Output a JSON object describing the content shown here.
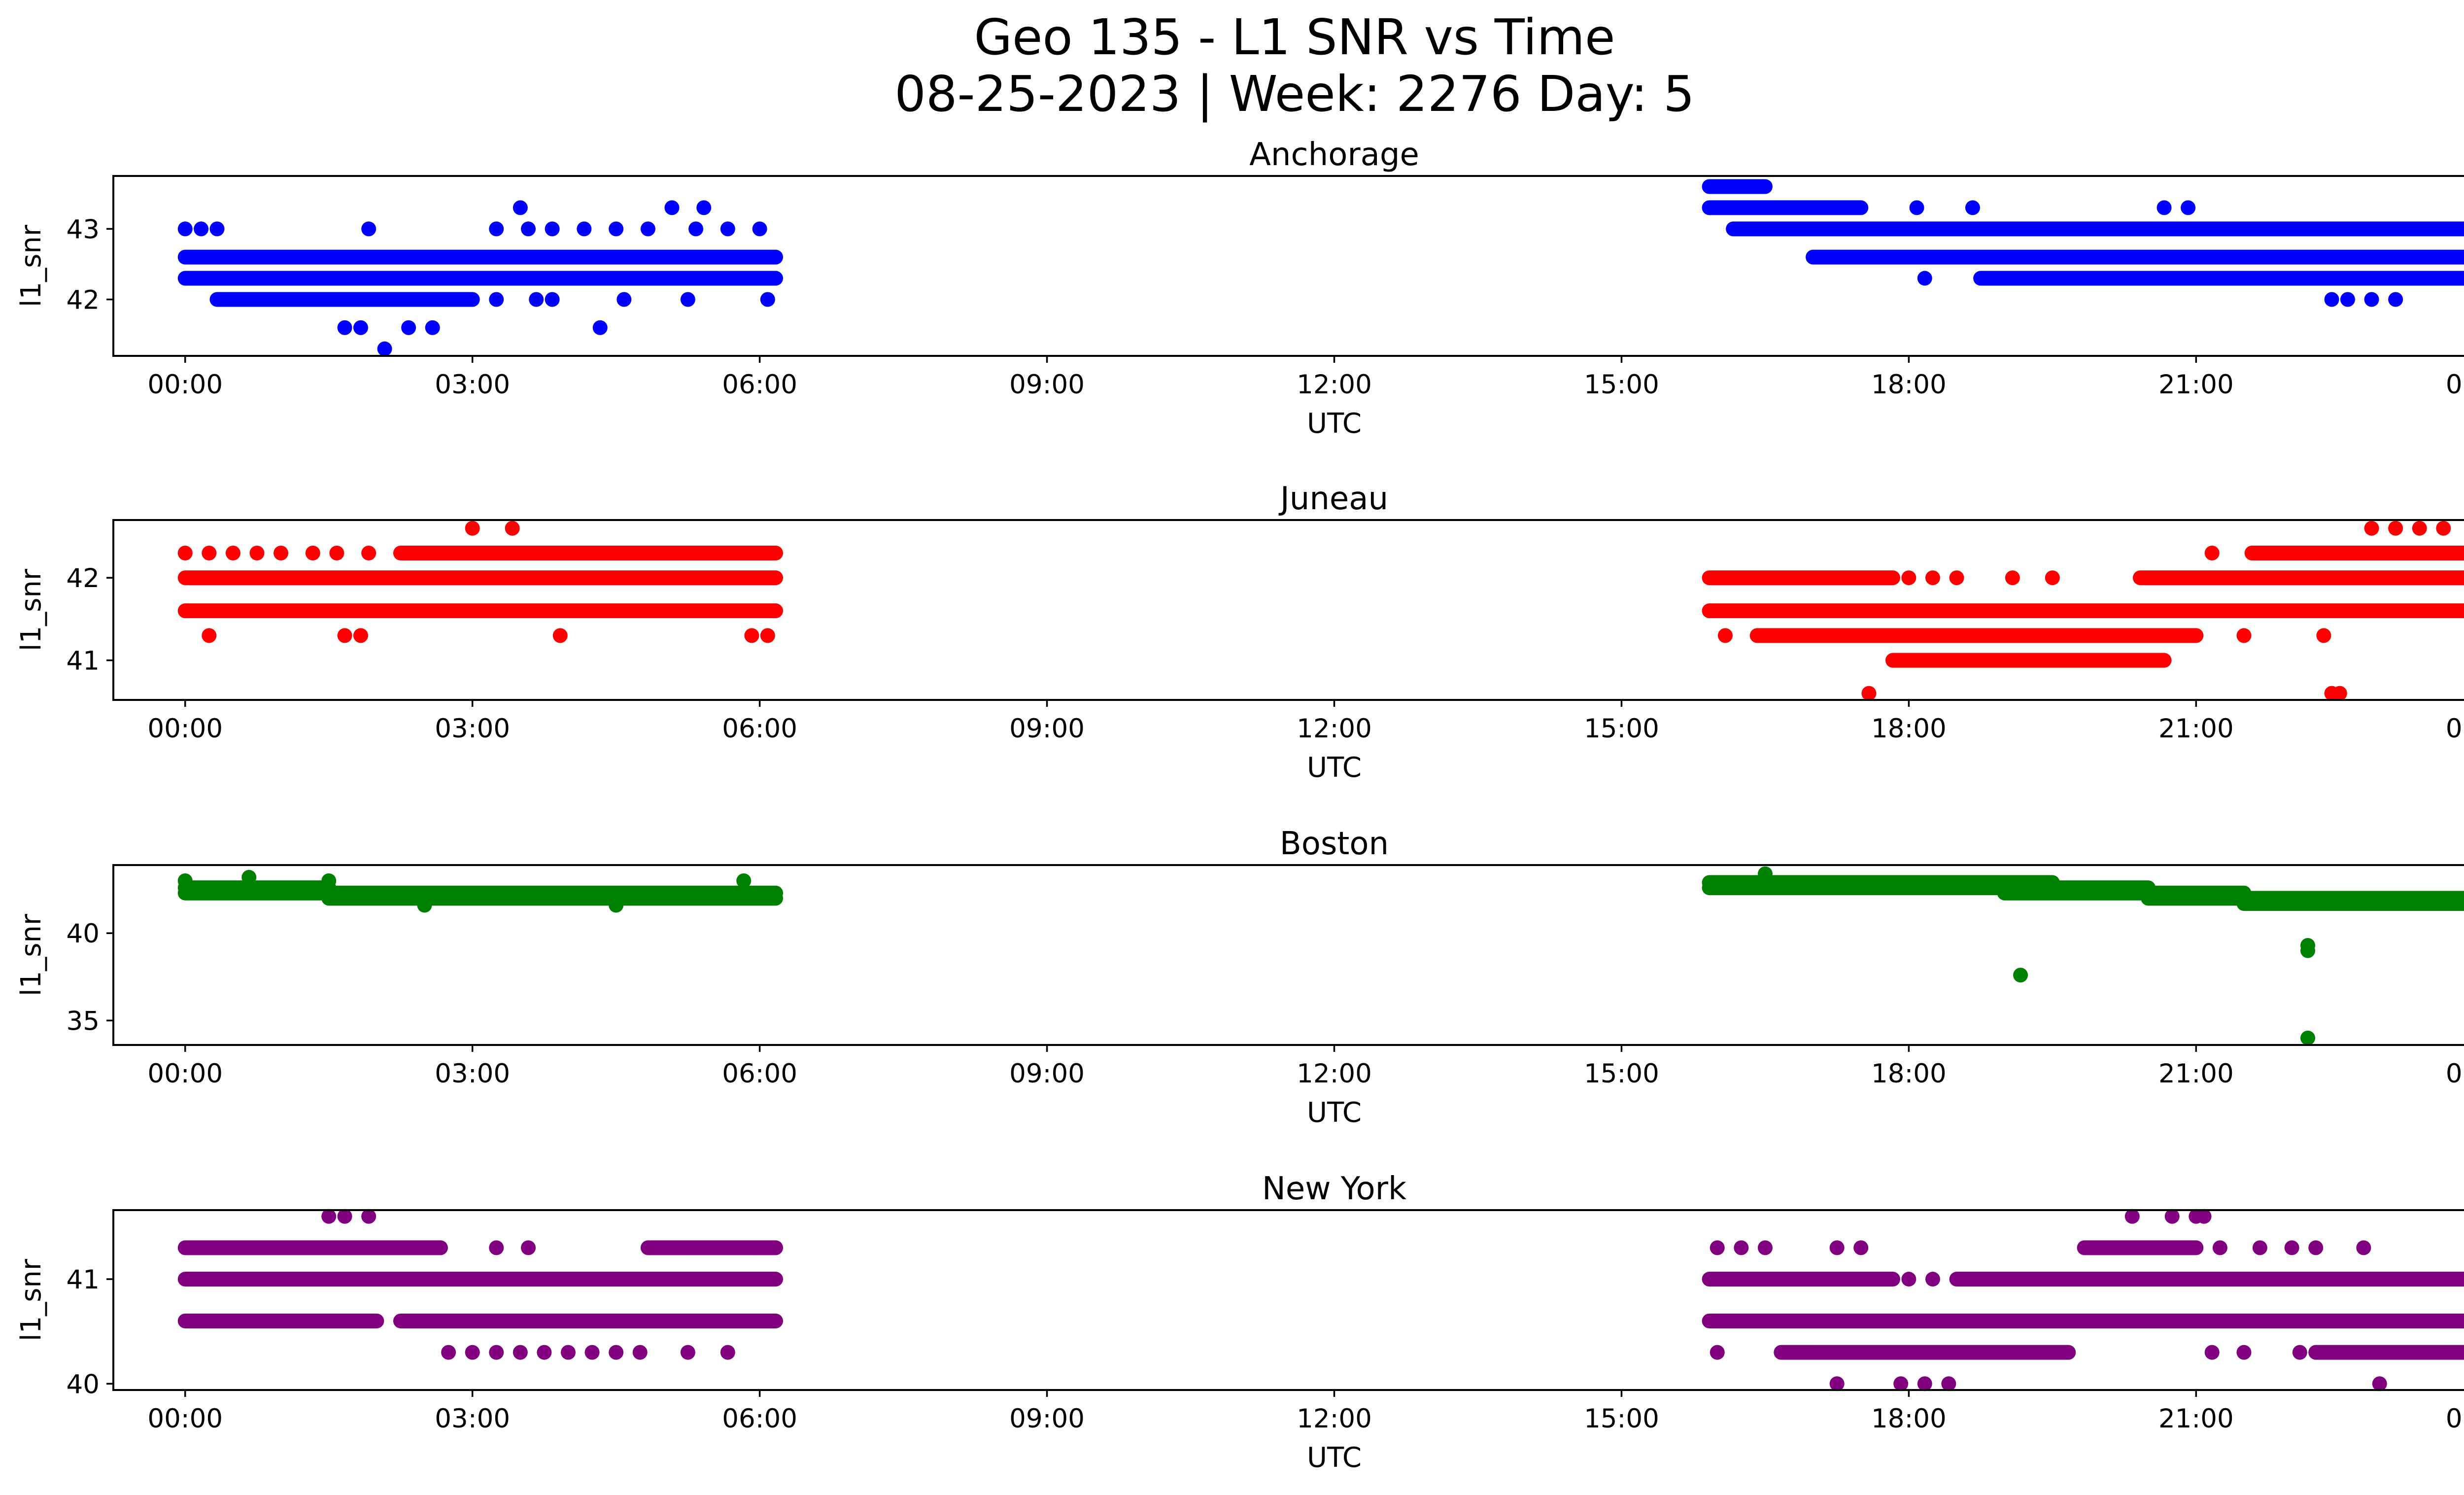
{
  "figure": {
    "title_line1": "Geo 135 - L1 SNR vs Time",
    "title_line2": "08-25-2023 | Week: 2276 Day: 5"
  },
  "chart_data": [
    {
      "type": "scatter",
      "title": "Anchorage",
      "xlabel": "UTC",
      "ylabel": "l1_snr",
      "color": "#0000ff",
      "xlim": [
        "23:15",
        "26:15"
      ],
      "xticks": [
        "00:00",
        "03:00",
        "06:00",
        "09:00",
        "12:00",
        "15:00",
        "18:00",
        "21:00",
        "00:00"
      ],
      "ylim": [
        41.2,
        43.75
      ],
      "yticks": [
        42,
        43
      ],
      "grid": false,
      "series": [
        {
          "segments": [
            {
              "start": "00:00",
              "end": "06:10",
              "y": 42.6
            },
            {
              "start": "00:00",
              "end": "06:10",
              "y": 42.3
            },
            {
              "start": "00:20",
              "end": "03:00",
              "y": 42.0
            },
            {
              "start": "15:55",
              "end": "17:30",
              "y": 43.3
            },
            {
              "start": "16:10",
              "end": "23:59",
              "y": 43.0
            },
            {
              "start": "17:00",
              "end": "23:59",
              "y": 42.6
            },
            {
              "start": "18:45",
              "end": "23:55",
              "y": 42.3
            },
            {
              "start": "15:55",
              "end": "16:30",
              "y": 43.6
            }
          ],
          "points": [
            {
              "t": "00:00",
              "y": 43.0
            },
            {
              "t": "00:10",
              "y": 43.0
            },
            {
              "t": "00:20",
              "y": 43.0
            },
            {
              "t": "01:55",
              "y": 43.0
            },
            {
              "t": "03:15",
              "y": 43.0
            },
            {
              "t": "03:35",
              "y": 43.0
            },
            {
              "t": "03:50",
              "y": 43.0
            },
            {
              "t": "04:10",
              "y": 43.0
            },
            {
              "t": "04:30",
              "y": 43.0
            },
            {
              "t": "04:50",
              "y": 43.0
            },
            {
              "t": "05:20",
              "y": 43.0
            },
            {
              "t": "05:40",
              "y": 43.0
            },
            {
              "t": "06:00",
              "y": 43.0
            },
            {
              "t": "03:30",
              "y": 43.3
            },
            {
              "t": "05:05",
              "y": 43.3
            },
            {
              "t": "05:25",
              "y": 43.3
            },
            {
              "t": "01:40",
              "y": 41.6
            },
            {
              "t": "01:50",
              "y": 41.6
            },
            {
              "t": "02:20",
              "y": 41.6
            },
            {
              "t": "02:35",
              "y": 41.6
            },
            {
              "t": "04:20",
              "y": 41.6
            },
            {
              "t": "02:05",
              "y": 41.3
            },
            {
              "t": "03:15",
              "y": 42.0
            },
            {
              "t": "03:40",
              "y": 42.0
            },
            {
              "t": "03:50",
              "y": 42.0
            },
            {
              "t": "04:35",
              "y": 42.0
            },
            {
              "t": "05:15",
              "y": 42.0
            },
            {
              "t": "06:05",
              "y": 42.0
            },
            {
              "t": "18:10",
              "y": 42.3
            },
            {
              "t": "18:40",
              "y": 43.3
            },
            {
              "t": "20:40",
              "y": 43.3
            },
            {
              "t": "20:55",
              "y": 43.3
            },
            {
              "t": "18:05",
              "y": 43.3
            },
            {
              "t": "22:25",
              "y": 42.0
            },
            {
              "t": "22:35",
              "y": 42.0
            },
            {
              "t": "22:50",
              "y": 42.0
            },
            {
              "t": "23:05",
              "y": 42.0
            }
          ]
        }
      ]
    },
    {
      "type": "scatter",
      "title": "Juneau",
      "xlabel": "UTC",
      "ylabel": "l1_snr",
      "color": "#ff0000",
      "xlim": [
        "23:15",
        "26:15"
      ],
      "xticks": [
        "00:00",
        "03:00",
        "06:00",
        "09:00",
        "12:00",
        "15:00",
        "18:00",
        "21:00",
        "00:00"
      ],
      "ylim": [
        40.52,
        42.7
      ],
      "yticks": [
        41,
        42
      ],
      "grid": false,
      "series": [
        {
          "segments": [
            {
              "start": "00:00",
              "end": "06:10",
              "y": 42.0
            },
            {
              "start": "00:00",
              "end": "06:10",
              "y": 41.6
            },
            {
              "start": "02:15",
              "end": "06:10",
              "y": 42.3
            },
            {
              "start": "15:55",
              "end": "23:59",
              "y": 41.6
            },
            {
              "start": "15:55",
              "end": "17:50",
              "y": 42.0
            },
            {
              "start": "16:25",
              "end": "21:00",
              "y": 41.3
            },
            {
              "start": "17:50",
              "end": "20:40",
              "y": 41.0
            },
            {
              "start": "20:25",
              "end": "23:59",
              "y": 42.0
            },
            {
              "start": "21:35",
              "end": "23:59",
              "y": 42.3
            }
          ],
          "points": [
            {
              "t": "00:00",
              "y": 42.3
            },
            {
              "t": "00:15",
              "y": 42.3
            },
            {
              "t": "00:30",
              "y": 42.3
            },
            {
              "t": "00:45",
              "y": 42.3
            },
            {
              "t": "01:00",
              "y": 42.3
            },
            {
              "t": "01:20",
              "y": 42.3
            },
            {
              "t": "01:35",
              "y": 42.3
            },
            {
              "t": "01:55",
              "y": 42.3
            },
            {
              "t": "00:15",
              "y": 41.3
            },
            {
              "t": "01:40",
              "y": 41.3
            },
            {
              "t": "01:50",
              "y": 41.3
            },
            {
              "t": "03:55",
              "y": 41.3
            },
            {
              "t": "05:55",
              "y": 41.3
            },
            {
              "t": "06:05",
              "y": 41.3
            },
            {
              "t": "03:00",
              "y": 42.6
            },
            {
              "t": "03:25",
              "y": 42.6
            },
            {
              "t": "16:05",
              "y": 41.3
            },
            {
              "t": "17:35",
              "y": 40.6
            },
            {
              "t": "22:25",
              "y": 40.6
            },
            {
              "t": "22:30",
              "y": 40.6
            },
            {
              "t": "22:50",
              "y": 42.6
            },
            {
              "t": "23:05",
              "y": 42.6
            },
            {
              "t": "23:20",
              "y": 42.6
            },
            {
              "t": "23:35",
              "y": 42.6
            },
            {
              "t": "18:00",
              "y": 42.0
            },
            {
              "t": "18:15",
              "y": 42.0
            },
            {
              "t": "18:30",
              "y": 42.0
            },
            {
              "t": "19:05",
              "y": 42.0
            },
            {
              "t": "19:30",
              "y": 42.0
            },
            {
              "t": "21:10",
              "y": 42.3
            },
            {
              "t": "23:55",
              "y": 41.6
            },
            {
              "t": "21:30",
              "y": 41.3
            },
            {
              "t": "22:20",
              "y": 41.3
            }
          ]
        }
      ]
    },
    {
      "type": "scatter",
      "title": "Boston",
      "xlabel": "UTC",
      "ylabel": "l1_snr",
      "color": "#008000",
      "xlim": [
        "23:15",
        "26:15"
      ],
      "xticks": [
        "00:00",
        "03:00",
        "06:00",
        "09:00",
        "12:00",
        "15:00",
        "18:00",
        "21:00",
        "00:00"
      ],
      "ylim": [
        33.6,
        43.9
      ],
      "yticks": [
        35,
        40
      ],
      "grid": false,
      "series": [
        {
          "segments": [
            {
              "start": "00:00",
              "end": "01:30",
              "y": 42.6
            },
            {
              "start": "00:00",
              "end": "06:10",
              "y": 42.3
            },
            {
              "start": "01:30",
              "end": "06:10",
              "y": 42.0
            },
            {
              "start": "15:55",
              "end": "19:30",
              "y": 42.9
            },
            {
              "start": "15:55",
              "end": "20:30",
              "y": 42.6
            },
            {
              "start": "19:00",
              "end": "21:30",
              "y": 42.3
            },
            {
              "start": "20:30",
              "end": "23:59",
              "y": 42.0
            },
            {
              "start": "21:30",
              "end": "23:59",
              "y": 41.7
            }
          ],
          "points": [
            {
              "t": "00:00",
              "y": 43.0
            },
            {
              "t": "00:40",
              "y": 43.2
            },
            {
              "t": "01:30",
              "y": 43.0
            },
            {
              "t": "02:30",
              "y": 41.6
            },
            {
              "t": "04:30",
              "y": 41.6
            },
            {
              "t": "05:50",
              "y": 43.0
            },
            {
              "t": "16:30",
              "y": 43.4
            },
            {
              "t": "19:10",
              "y": 37.6
            },
            {
              "t": "22:10",
              "y": 39.3
            },
            {
              "t": "22:10",
              "y": 39.0
            },
            {
              "t": "22:10",
              "y": 34.0
            }
          ]
        }
      ]
    },
    {
      "type": "scatter",
      "title": "New York",
      "xlabel": "UTC",
      "ylabel": "l1_snr",
      "color": "#800080",
      "xlim": [
        "23:15",
        "26:15"
      ],
      "xticks": [
        "00:00",
        "03:00",
        "06:00",
        "09:00",
        "12:00",
        "15:00",
        "18:00",
        "21:00",
        "00:00"
      ],
      "ylim": [
        39.94,
        41.66
      ],
      "yticks": [
        40,
        41
      ],
      "grid": false,
      "series": [
        {
          "segments": [
            {
              "start": "00:00",
              "end": "06:10",
              "y": 41.0
            },
            {
              "start": "00:00",
              "end": "02:00",
              "y": 40.6
            },
            {
              "start": "02:15",
              "end": "06:10",
              "y": 40.6
            },
            {
              "start": "00:00",
              "end": "02:40",
              "y": 41.3
            },
            {
              "start": "04:50",
              "end": "06:10",
              "y": 41.3
            },
            {
              "start": "15:55",
              "end": "17:50",
              "y": 41.0
            },
            {
              "start": "18:30",
              "end": "23:59",
              "y": 41.0
            },
            {
              "start": "15:55",
              "end": "23:59",
              "y": 40.6
            },
            {
              "start": "16:40",
              "end": "19:40",
              "y": 40.3
            },
            {
              "start": "22:15",
              "end": "23:59",
              "y": 40.3
            },
            {
              "start": "19:50",
              "end": "21:00",
              "y": 41.3
            }
          ],
          "points": [
            {
              "t": "01:30",
              "y": 41.6
            },
            {
              "t": "01:40",
              "y": 41.6
            },
            {
              "t": "01:55",
              "y": 41.6
            },
            {
              "t": "02:45",
              "y": 40.3
            },
            {
              "t": "03:00",
              "y": 40.3
            },
            {
              "t": "03:15",
              "y": 40.3
            },
            {
              "t": "03:30",
              "y": 40.3
            },
            {
              "t": "03:45",
              "y": 40.3
            },
            {
              "t": "04:00",
              "y": 40.3
            },
            {
              "t": "04:15",
              "y": 40.3
            },
            {
              "t": "04:30",
              "y": 40.3
            },
            {
              "t": "04:45",
              "y": 40.3
            },
            {
              "t": "05:15",
              "y": 40.3
            },
            {
              "t": "05:40",
              "y": 40.3
            },
            {
              "t": "03:15",
              "y": 41.3
            },
            {
              "t": "03:35",
              "y": 41.3
            },
            {
              "t": "16:00",
              "y": 41.3
            },
            {
              "t": "16:15",
              "y": 41.3
            },
            {
              "t": "16:30",
              "y": 41.3
            },
            {
              "t": "17:15",
              "y": 41.3
            },
            {
              "t": "17:30",
              "y": 41.3
            },
            {
              "t": "16:00",
              "y": 40.3
            },
            {
              "t": "17:15",
              "y": 40.0
            },
            {
              "t": "17:55",
              "y": 40.0
            },
            {
              "t": "18:10",
              "y": 40.0
            },
            {
              "t": "18:25",
              "y": 40.0
            },
            {
              "t": "22:55",
              "y": 40.0
            },
            {
              "t": "20:20",
              "y": 41.6
            },
            {
              "t": "20:45",
              "y": 41.6
            },
            {
              "t": "21:00",
              "y": 41.6
            },
            {
              "t": "21:05",
              "y": 41.6
            },
            {
              "t": "18:00",
              "y": 41.0
            },
            {
              "t": "18:15",
              "y": 41.0
            },
            {
              "t": "21:10",
              "y": 40.3
            },
            {
              "t": "21:30",
              "y": 40.3
            },
            {
              "t": "22:05",
              "y": 40.3
            },
            {
              "t": "21:15",
              "y": 41.3
            },
            {
              "t": "21:40",
              "y": 41.3
            },
            {
              "t": "22:00",
              "y": 41.3
            },
            {
              "t": "22:15",
              "y": 41.3
            },
            {
              "t": "22:45",
              "y": 41.3
            }
          ]
        }
      ]
    }
  ]
}
